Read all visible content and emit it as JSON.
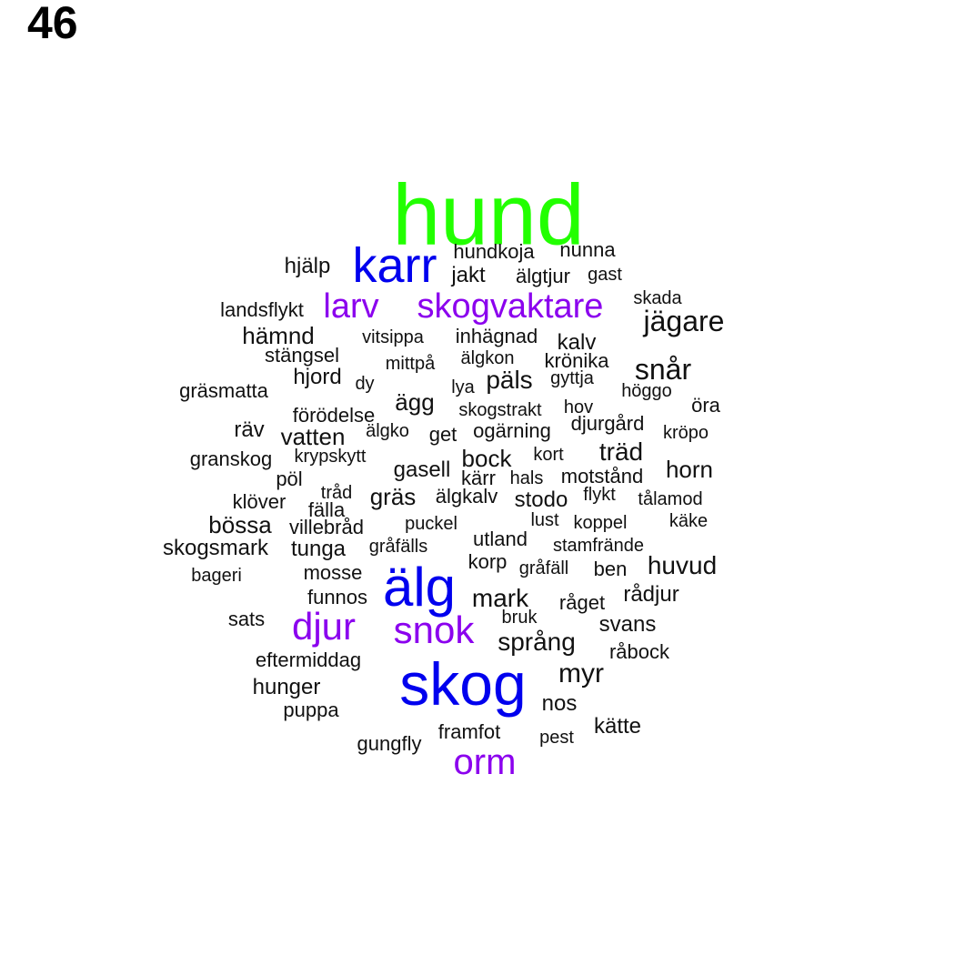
{
  "page_number": "46",
  "colors": {
    "green": "#22ff00",
    "blue": "#0000ee",
    "purple": "#8b00ee",
    "black": "#111111"
  },
  "words": [
    {
      "text": "hund",
      "color": "green"
    },
    {
      "text": "karr",
      "color": "blue"
    },
    {
      "text": "hjälp",
      "color": "black"
    },
    {
      "text": "hundkoja",
      "color": "black"
    },
    {
      "text": "nunna",
      "color": "black"
    },
    {
      "text": "jakt",
      "color": "black"
    },
    {
      "text": "älgtjur",
      "color": "black"
    },
    {
      "text": "gast",
      "color": "black"
    },
    {
      "text": "landsflykt",
      "color": "black"
    },
    {
      "text": "larv",
      "color": "purple"
    },
    {
      "text": "skogvaktare",
      "color": "purple"
    },
    {
      "text": "skada",
      "color": "black"
    },
    {
      "text": "jägare",
      "color": "black"
    },
    {
      "text": "hämnd",
      "color": "black"
    },
    {
      "text": "vitsippa",
      "color": "black"
    },
    {
      "text": "inhägnad",
      "color": "black"
    },
    {
      "text": "kalv",
      "color": "black"
    },
    {
      "text": "stängsel",
      "color": "black"
    },
    {
      "text": "älgkon",
      "color": "black"
    },
    {
      "text": "krönika",
      "color": "black"
    },
    {
      "text": "mittpå",
      "color": "black"
    },
    {
      "text": "snår",
      "color": "black"
    },
    {
      "text": "hjord",
      "color": "black"
    },
    {
      "text": "päls",
      "color": "black"
    },
    {
      "text": "gyttja",
      "color": "black"
    },
    {
      "text": "dy",
      "color": "black"
    },
    {
      "text": "lya",
      "color": "black"
    },
    {
      "text": "gräsmatta",
      "color": "black"
    },
    {
      "text": "höggo",
      "color": "black"
    },
    {
      "text": "ägg",
      "color": "black"
    },
    {
      "text": "skogstrakt",
      "color": "black"
    },
    {
      "text": "hov",
      "color": "black"
    },
    {
      "text": "öra",
      "color": "black"
    },
    {
      "text": "förödelse",
      "color": "black"
    },
    {
      "text": "djurgård",
      "color": "black"
    },
    {
      "text": "räv",
      "color": "black"
    },
    {
      "text": "vatten",
      "color": "black"
    },
    {
      "text": "älgko",
      "color": "black"
    },
    {
      "text": "get",
      "color": "black"
    },
    {
      "text": "ogärning",
      "color": "black"
    },
    {
      "text": "kröpo",
      "color": "black"
    },
    {
      "text": "granskog",
      "color": "black"
    },
    {
      "text": "krypskytt",
      "color": "black"
    },
    {
      "text": "bock",
      "color": "black"
    },
    {
      "text": "kort",
      "color": "black"
    },
    {
      "text": "träd",
      "color": "black"
    },
    {
      "text": "pöl",
      "color": "black"
    },
    {
      "text": "gasell",
      "color": "black"
    },
    {
      "text": "kärr",
      "color": "black"
    },
    {
      "text": "hals",
      "color": "black"
    },
    {
      "text": "motstånd",
      "color": "black"
    },
    {
      "text": "horn",
      "color": "black"
    },
    {
      "text": "tråd",
      "color": "black"
    },
    {
      "text": "gräs",
      "color": "black"
    },
    {
      "text": "älgkalv",
      "color": "black"
    },
    {
      "text": "stodo",
      "color": "black"
    },
    {
      "text": "flykt",
      "color": "black"
    },
    {
      "text": "tålamod",
      "color": "black"
    },
    {
      "text": "klöver",
      "color": "black"
    },
    {
      "text": "fälla",
      "color": "black"
    },
    {
      "text": "bössa",
      "color": "black"
    },
    {
      "text": "villebråd",
      "color": "black"
    },
    {
      "text": "puckel",
      "color": "black"
    },
    {
      "text": "lust",
      "color": "black"
    },
    {
      "text": "koppel",
      "color": "black"
    },
    {
      "text": "käke",
      "color": "black"
    },
    {
      "text": "utland",
      "color": "black"
    },
    {
      "text": "skogsmark",
      "color": "black"
    },
    {
      "text": "tunga",
      "color": "black"
    },
    {
      "text": "gråfälls",
      "color": "black"
    },
    {
      "text": "stamfrände",
      "color": "black"
    },
    {
      "text": "korp",
      "color": "black"
    },
    {
      "text": "gråfäll",
      "color": "black"
    },
    {
      "text": "ben",
      "color": "black"
    },
    {
      "text": "huvud",
      "color": "black"
    },
    {
      "text": "bageri",
      "color": "black"
    },
    {
      "text": "mosse",
      "color": "black"
    },
    {
      "text": "älg",
      "color": "blue"
    },
    {
      "text": "funnos",
      "color": "black"
    },
    {
      "text": "mark",
      "color": "black"
    },
    {
      "text": "råget",
      "color": "black"
    },
    {
      "text": "rådjur",
      "color": "black"
    },
    {
      "text": "sats",
      "color": "black"
    },
    {
      "text": "djur",
      "color": "purple"
    },
    {
      "text": "snok",
      "color": "purple"
    },
    {
      "text": "bruk",
      "color": "black"
    },
    {
      "text": "svans",
      "color": "black"
    },
    {
      "text": "språng",
      "color": "black"
    },
    {
      "text": "råbock",
      "color": "black"
    },
    {
      "text": "eftermiddag",
      "color": "black"
    },
    {
      "text": "skog",
      "color": "blue"
    },
    {
      "text": "myr",
      "color": "black"
    },
    {
      "text": "hunger",
      "color": "black"
    },
    {
      "text": "nos",
      "color": "black"
    },
    {
      "text": "puppa",
      "color": "black"
    },
    {
      "text": "kätte",
      "color": "black"
    },
    {
      "text": "framfot",
      "color": "black"
    },
    {
      "text": "pest",
      "color": "black"
    },
    {
      "text": "gungfly",
      "color": "black"
    },
    {
      "text": "orm",
      "color": "purple"
    }
  ]
}
